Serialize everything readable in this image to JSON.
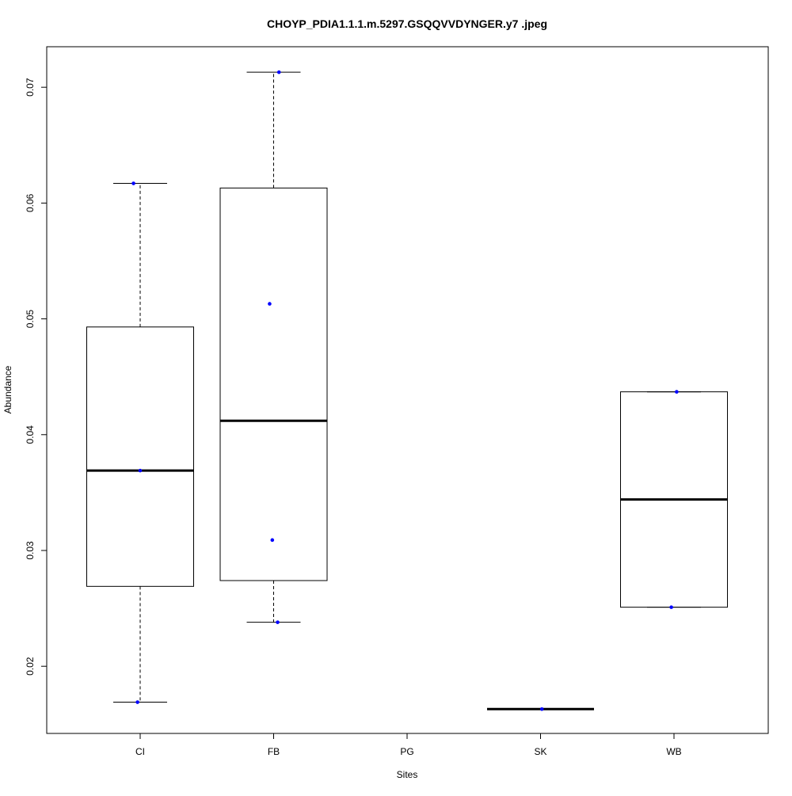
{
  "chart_data": {
    "type": "box",
    "title": "CHOYP_PDIA1.1.1.m.5297.GSQQVVDYNGER.y7 .jpeg",
    "xlabel": "Sites",
    "ylabel": "Abundance",
    "categories": [
      "CI",
      "FB",
      "PG",
      "SK",
      "WB"
    ],
    "ylim": [
      0.0142,
      0.0735
    ],
    "yticks": [
      0.02,
      0.03,
      0.04,
      0.05,
      0.06,
      0.07
    ],
    "ytick_labels": [
      "0.02",
      "0.03",
      "0.04",
      "0.05",
      "0.06",
      "0.07"
    ],
    "boxes": [
      {
        "category": "CI",
        "whisker_low": 0.0169,
        "q1": 0.0269,
        "median": 0.0369,
        "q3": 0.0493,
        "whisker_high": 0.0617
      },
      {
        "category": "FB",
        "whisker_low": 0.0238,
        "q1": 0.0274,
        "median": 0.0412,
        "q3": 0.0613,
        "whisker_high": 0.0713
      },
      {
        "category": "PG",
        "whisker_low": null,
        "q1": null,
        "median": null,
        "q3": null,
        "whisker_high": null
      },
      {
        "category": "SK",
        "whisker_low": 0.0163,
        "q1": 0.0163,
        "median": 0.0163,
        "q3": 0.0163,
        "whisker_high": 0.0163
      },
      {
        "category": "WB",
        "whisker_low": 0.0251,
        "q1": 0.0251,
        "median": 0.0344,
        "q3": 0.0437,
        "whisker_high": 0.0437
      }
    ],
    "points": [
      {
        "category": "CI",
        "offset": -0.05,
        "value": 0.0617
      },
      {
        "category": "CI",
        "offset": -0.02,
        "value": 0.0169
      },
      {
        "category": "CI",
        "offset": 0.0,
        "value": 0.0369
      },
      {
        "category": "FB",
        "offset": 0.04,
        "value": 0.0713
      },
      {
        "category": "FB",
        "offset": -0.03,
        "value": 0.0513
      },
      {
        "category": "FB",
        "offset": -0.01,
        "value": 0.0309
      },
      {
        "category": "FB",
        "offset": 0.03,
        "value": 0.0238
      },
      {
        "category": "SK",
        "offset": 0.01,
        "value": 0.0163
      },
      {
        "category": "WB",
        "offset": 0.02,
        "value": 0.0437
      },
      {
        "category": "WB",
        "offset": -0.02,
        "value": 0.0251
      }
    ],
    "point_color": "#0000ff",
    "legend": "none",
    "grid": false
  }
}
